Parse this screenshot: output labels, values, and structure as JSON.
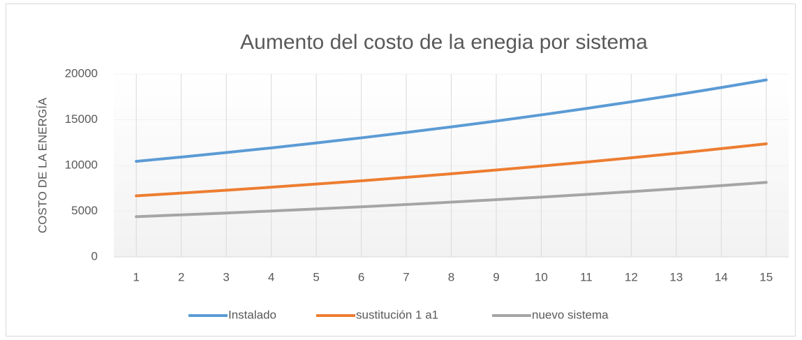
{
  "chart_data": {
    "type": "line",
    "title": "Aumento del costo de la enegia por sistema",
    "y_label": "COSTO DE LA ENERGÍA",
    "categories": [
      "1",
      "2",
      "3",
      "4",
      "5",
      "6",
      "7",
      "8",
      "9",
      "10",
      "11",
      "12",
      "13",
      "14",
      "15"
    ],
    "series": [
      {
        "name": "Instalado",
        "color": "#5b9bd5",
        "values": [
          10450,
          10920,
          11410,
          11920,
          12460,
          13020,
          13610,
          14220,
          14860,
          15530,
          16230,
          16960,
          17720,
          18520,
          19350
        ]
      },
      {
        "name": "sustitución 1 a1",
        "color": "#ed7d31",
        "values": [
          6680,
          6980,
          7290,
          7620,
          7970,
          8320,
          8700,
          9090,
          9500,
          9930,
          10370,
          10840,
          11330,
          11840,
          12370
        ]
      },
      {
        "name": "nuevo sistema",
        "color": "#a5a5a5",
        "values": [
          4400,
          4600,
          4800,
          5020,
          5250,
          5480,
          5730,
          5990,
          6260,
          6540,
          6830,
          7140,
          7460,
          7800,
          8150
        ]
      }
    ],
    "ylim": [
      0,
      20000
    ],
    "yticks": [
      0,
      5000,
      10000,
      15000,
      20000
    ],
    "grid": true,
    "legend": "bottom"
  }
}
